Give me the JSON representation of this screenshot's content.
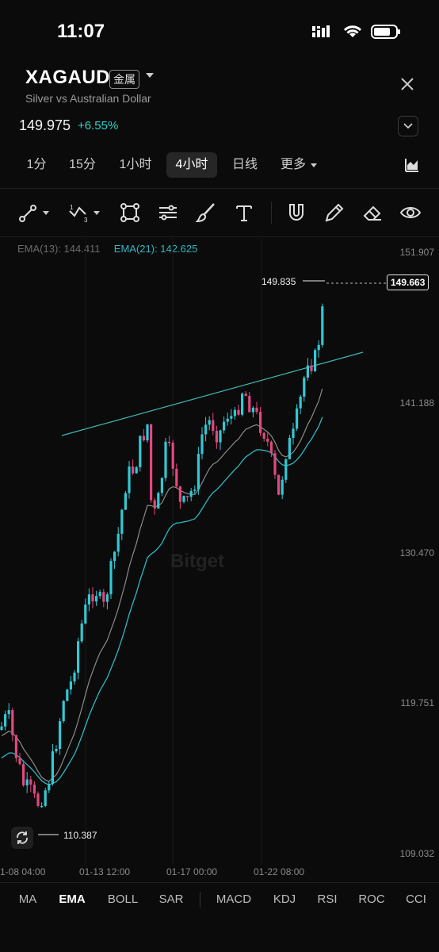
{
  "status": {
    "time": "11:07"
  },
  "header": {
    "symbol": "XAGAUD",
    "badge": "金属",
    "subtitle": "Silver vs Australian Dollar",
    "price": "149.975",
    "change": "+6.55%"
  },
  "timeframes": [
    "1分",
    "15分",
    "1小时",
    "4小时",
    "日线",
    "更多"
  ],
  "active_timeframe": "4小时",
  "tools": [
    "line-tool-icon",
    "wave-tool-icon",
    "shape-tool-icon",
    "fib-tool-icon",
    "brush-tool-icon",
    "text-tool-icon",
    "magnet-icon",
    "pencil-icon",
    "eraser-icon",
    "eye-icon"
  ],
  "tool_labels": {
    "wave_sub": "1",
    "wave_sub2": "3"
  },
  "legend": {
    "ema13": "EMA(13): 144.411",
    "ema21": "EMA(21): 142.625"
  },
  "price_axis": [
    "151.907",
    "141.188",
    "130.470",
    "119.751",
    "109.032"
  ],
  "date_axis": [
    "1-08 04:00",
    "01-13 12:00",
    "01-17 00:00",
    "01-22 08:00"
  ],
  "chart_data": {
    "type": "candlestick",
    "high_label": "149.835",
    "low_label": "110.387",
    "current_price_label": "149.663",
    "ylim": [
      109.032,
      151.907
    ],
    "ema_colors": {
      "ema13": "#8c8c8c",
      "ema21": "#2fb7c4"
    },
    "candle_colors": {
      "up": "#31c9d4",
      "down": "#e2487e"
    },
    "watermark": "Bitget"
  },
  "bottom_tabs": [
    "MA",
    "EMA",
    "BOLL",
    "SAR",
    "MACD",
    "KDJ",
    "RSI",
    "ROC",
    "CCI"
  ],
  "active_bottom_tab": "EMA"
}
